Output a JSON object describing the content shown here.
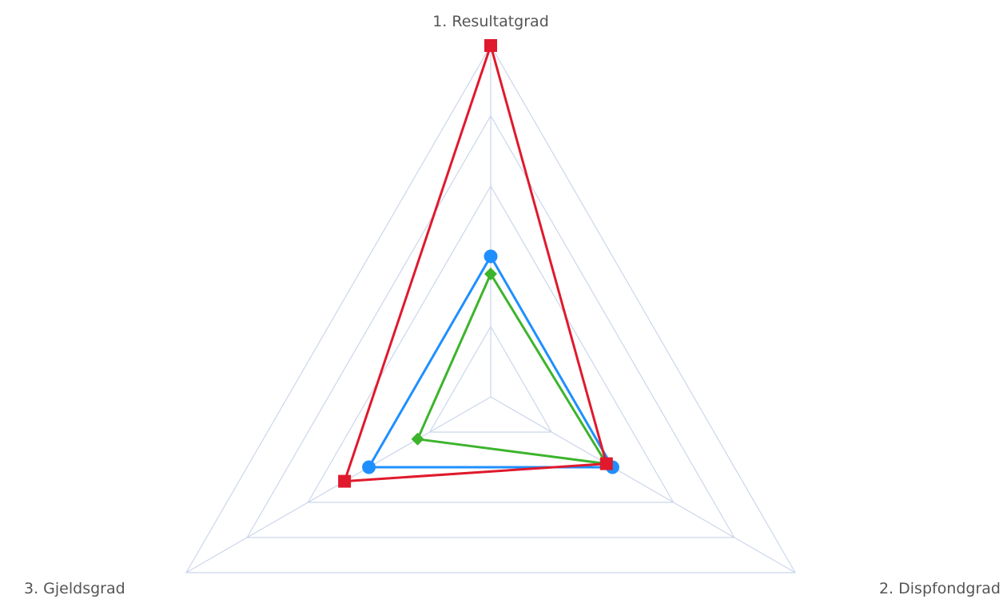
{
  "chart_data": {
    "type": "radar",
    "axes": [
      "1. Resultatgrad",
      "2. Dispfondgrad",
      "3. Gjeldsgrad"
    ],
    "rlim": [
      0,
      5
    ],
    "grid_levels": 5,
    "grid_shape": "polygon",
    "legend": "none",
    "series": [
      {
        "values": [
          5.0,
          1.9,
          2.4
        ],
        "color": "#e0192c",
        "marker": "square"
      },
      {
        "values": [
          2.0,
          2.0,
          2.0
        ],
        "color": "#1f8fff",
        "marker": "circle"
      },
      {
        "values": [
          1.75,
          1.9,
          1.2
        ],
        "color": "#3cb42c",
        "marker": "diamond"
      }
    ]
  }
}
